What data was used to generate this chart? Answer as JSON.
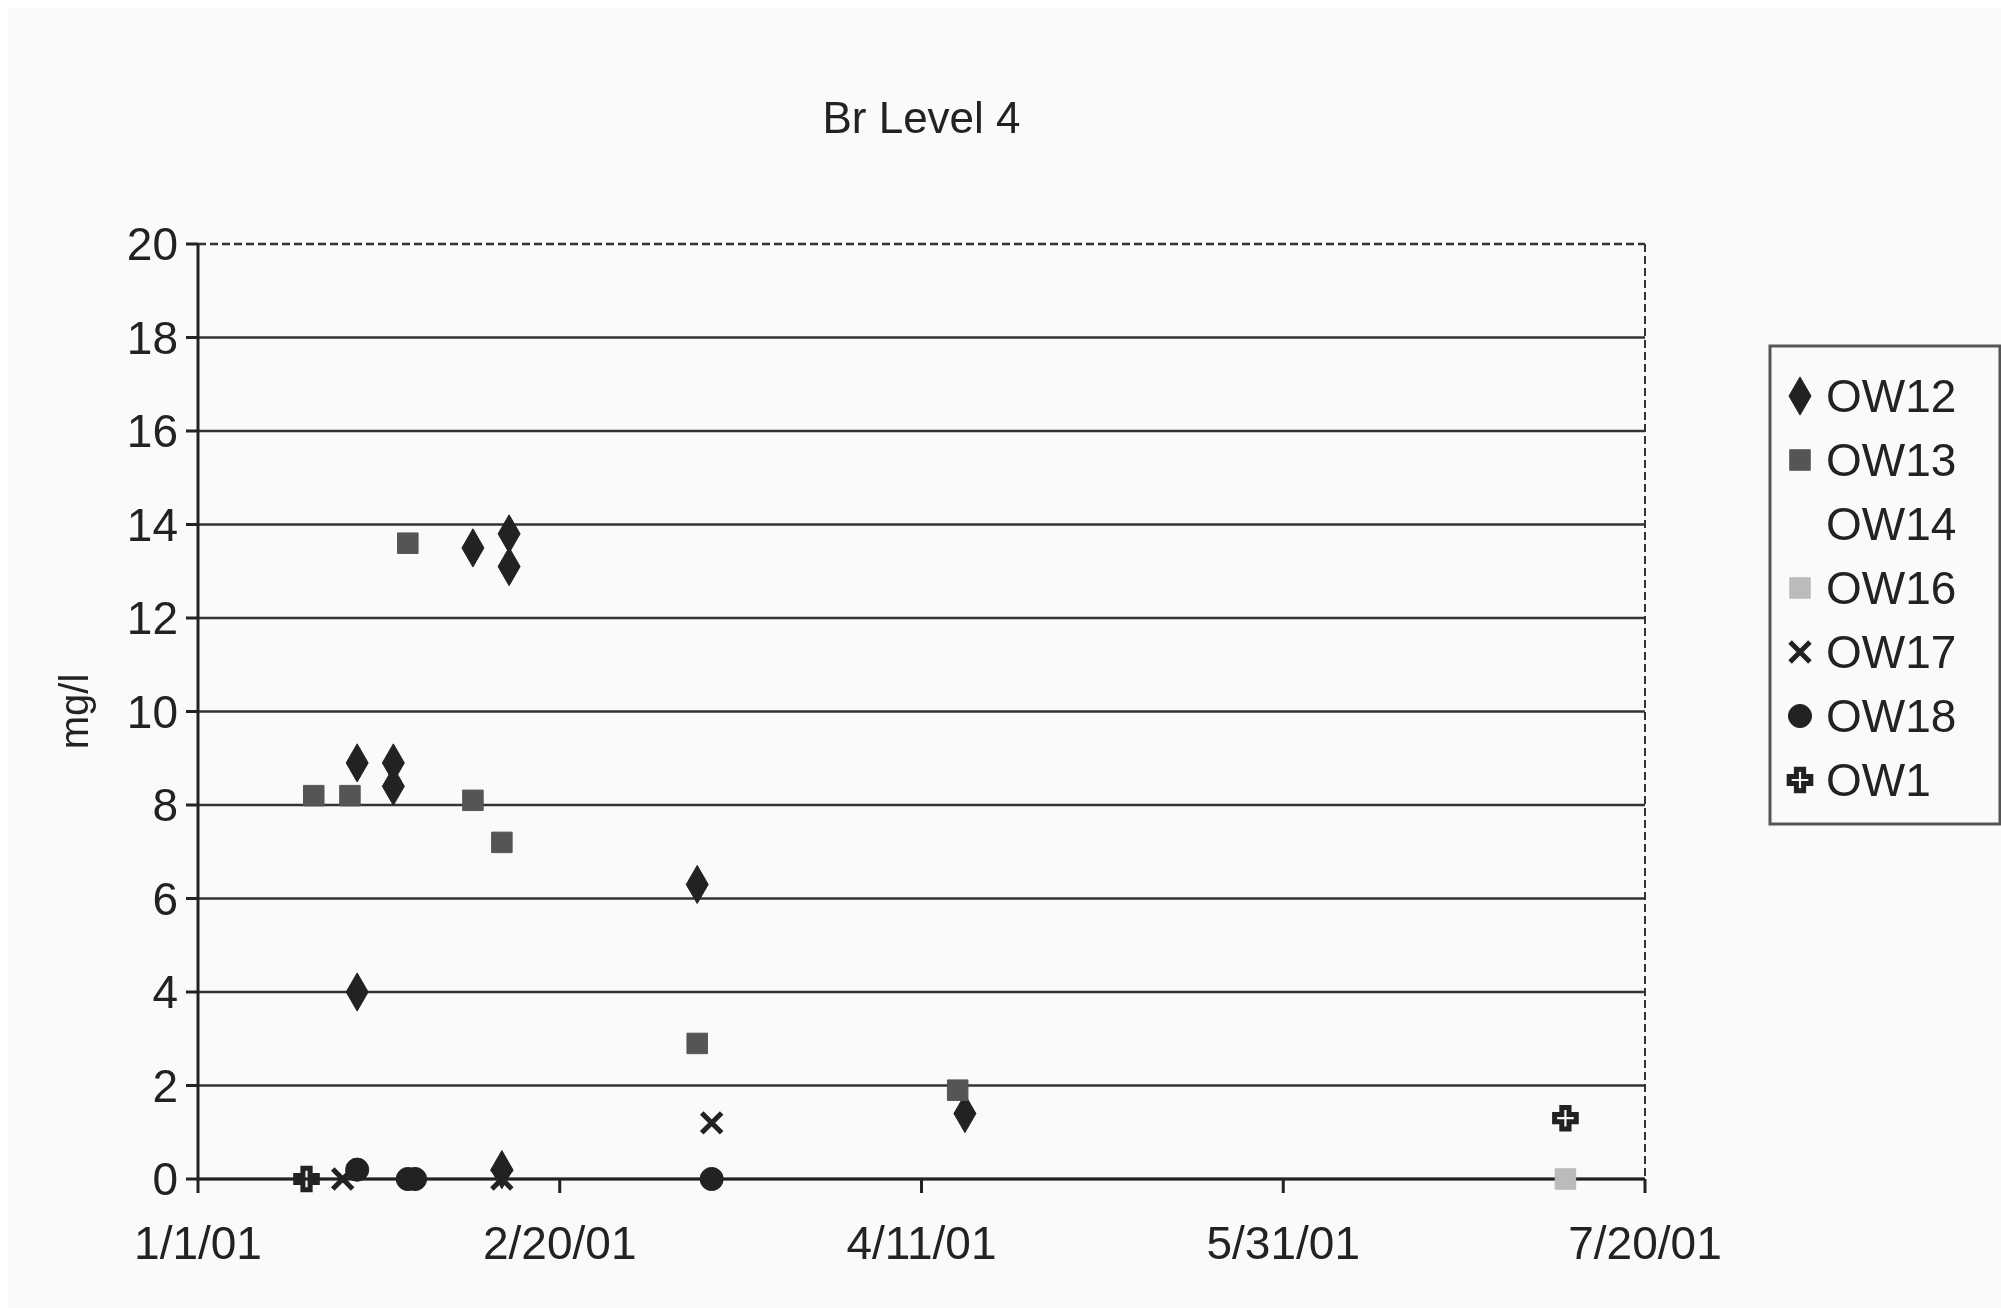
{
  "chart_data": {
    "type": "scatter",
    "title": "Br Level 4",
    "ylabel": "mg/l",
    "xlim": [
      "2001-01-01",
      "2001-07-20"
    ],
    "xticks": [
      {
        "value": "2001-01-01",
        "label": "1/1/01"
      },
      {
        "value": "2001-02-20",
        "label": "2/20/01"
      },
      {
        "value": "2001-04-11",
        "label": "4/11/01"
      },
      {
        "value": "2001-05-31",
        "label": "5/31/01"
      },
      {
        "value": "2001-07-20",
        "label": "7/20/01"
      }
    ],
    "ylim": [
      0,
      20
    ],
    "yticks": [
      0,
      2,
      4,
      6,
      8,
      10,
      12,
      14,
      16,
      18,
      20
    ],
    "grid": "y",
    "legend": "right",
    "series": [
      {
        "name": "OW12",
        "color": "#222222",
        "marker": "diamond",
        "x": [
          "2001-01-23",
          "2001-01-28",
          "2001-01-28",
          "2001-01-23",
          "2001-02-08",
          "2001-02-13",
          "2001-02-13",
          "2001-03-11",
          "2001-04-17",
          "2001-02-12"
        ],
        "values": [
          8.9,
          8.9,
          8.4,
          4.0,
          13.5,
          13.8,
          13.1,
          6.3,
          1.4,
          0.2
        ]
      },
      {
        "name": "OW13",
        "color": "#555555",
        "marker": "square",
        "x": [
          "2001-01-17",
          "2001-01-22",
          "2001-01-30",
          "2001-02-08",
          "2001-02-12",
          "2001-03-11",
          "2001-04-16"
        ],
        "values": [
          8.2,
          8.2,
          13.6,
          8.1,
          7.2,
          2.9,
          1.9
        ]
      },
      {
        "name": "OW14",
        "color": "#222222",
        "marker": "none"
      },
      {
        "name": "OW16",
        "color": "#bbbbbb",
        "marker": "square",
        "x": [
          "2001-07-09"
        ],
        "values": [
          0
        ]
      },
      {
        "name": "OW17",
        "color": "#222222",
        "marker": "x",
        "x": [
          "2001-01-21",
          "2001-02-12",
          "2001-03-13"
        ],
        "values": [
          0,
          0,
          1.2
        ]
      },
      {
        "name": "OW18",
        "color": "#222222",
        "marker": "circle",
        "x": [
          "2001-01-23",
          "2001-01-30",
          "2001-01-31",
          "2001-03-13"
        ],
        "values": [
          0.2,
          0,
          0,
          0
        ]
      },
      {
        "name": "OW1",
        "color": "#222222",
        "marker": "cross",
        "x": [
          "2001-01-16",
          "2001-07-09"
        ],
        "values": [
          0,
          1.3
        ]
      }
    ]
  }
}
